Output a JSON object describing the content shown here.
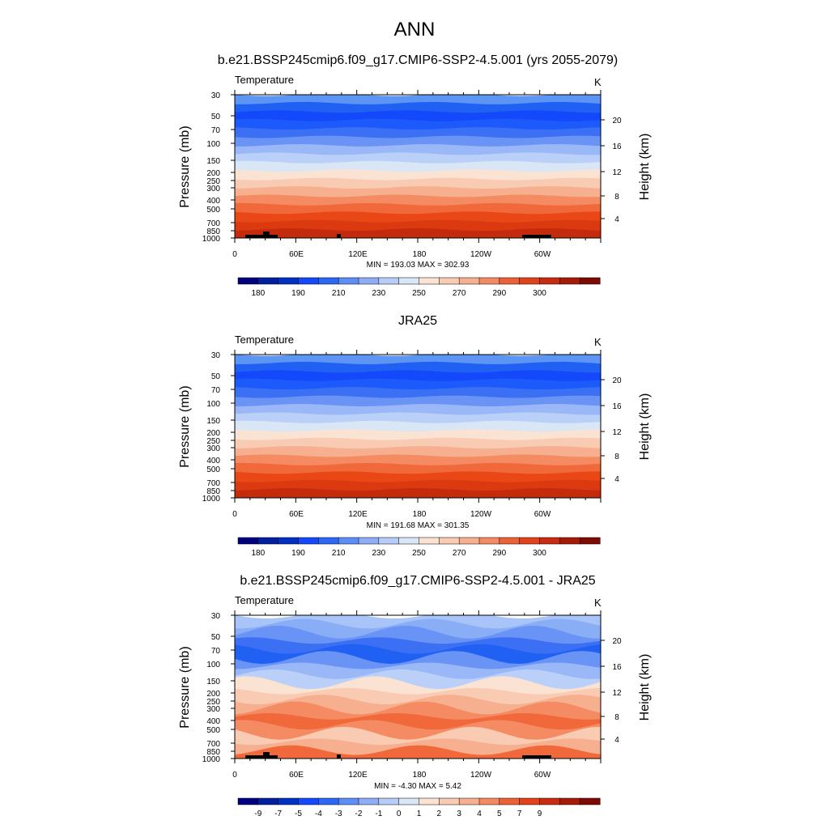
{
  "main_title": "ANN",
  "chart_data": [
    {
      "type": "heatmap",
      "title": "b.e21.BSSP245cmip6.f09_g17.CMIP6-SSP2-4.5.001 (yrs 2055-2079)",
      "variable": "Temperature",
      "units": "K",
      "ylabel": "Pressure (mb)",
      "ylabel_right": "Height (km)",
      "pressure_ticks": [
        "30",
        "50",
        "70",
        "100",
        "150",
        "200",
        "250",
        "300",
        "400",
        "500",
        "700",
        "850",
        "1000"
      ],
      "height_ticks": [
        "20",
        "16",
        "12",
        "8",
        "4"
      ],
      "lon_ticks": [
        "0",
        "60E",
        "120E",
        "180",
        "120W",
        "60W"
      ],
      "stats": "MIN = 193.03  MAX = 302.93",
      "colorbar_labels": [
        "180",
        "190",
        "210",
        "230",
        "250",
        "270",
        "290",
        "300"
      ],
      "band_colors": [
        "#5d95f4",
        "#2061f4",
        "#1449fb",
        "#1d5afc",
        "#3c70f4",
        "#6a93f6",
        "#9ab7f8",
        "#bad0f9",
        "#d9e6f6",
        "#fbe3d4",
        "#f9cbb2",
        "#f7b08f",
        "#f58b62",
        "#f1683b",
        "#e94816",
        "#db3a10",
        "#c42b0c"
      ],
      "has_topography": true,
      "contours": "zonal"
    },
    {
      "type": "heatmap",
      "title": "JRA25",
      "variable": "Temperature",
      "units": "K",
      "ylabel": "Pressure (mb)",
      "ylabel_right": "Height (km)",
      "pressure_ticks": [
        "30",
        "50",
        "70",
        "100",
        "150",
        "200",
        "250",
        "300",
        "400",
        "500",
        "700",
        "850",
        "1000"
      ],
      "height_ticks": [
        "20",
        "16",
        "12",
        "8",
        "4"
      ],
      "lon_ticks": [
        "0",
        "60E",
        "120E",
        "180",
        "120W",
        "60W"
      ],
      "stats": "MIN = 191.68  MAX = 301.35",
      "colorbar_labels": [
        "180",
        "190",
        "210",
        "230",
        "250",
        "270",
        "290",
        "300"
      ],
      "band_colors": [
        "#5d95f4",
        "#2061f4",
        "#1449fb",
        "#1d5afc",
        "#3c70f4",
        "#6a93f6",
        "#9ab7f8",
        "#bad0f9",
        "#d9e6f6",
        "#fbe3d4",
        "#f9cbb2",
        "#f7b08f",
        "#f58b62",
        "#f1683b",
        "#e94816",
        "#db3a10",
        "#c42b0c"
      ],
      "has_topography": false,
      "contours": "zonal"
    },
    {
      "type": "heatmap",
      "title": "b.e21.BSSP245cmip6.f09_g17.CMIP6-SSP2-4.5.001 - JRA25",
      "variable": "Temperature",
      "units": "K",
      "ylabel": "Pressure (mb)",
      "ylabel_right": "Height (km)",
      "pressure_ticks": [
        "30",
        "50",
        "70",
        "100",
        "150",
        "200",
        "250",
        "300",
        "400",
        "500",
        "700",
        "850",
        "1000"
      ],
      "height_ticks": [
        "20",
        "16",
        "12",
        "8",
        "4"
      ],
      "lon_ticks": [
        "0",
        "60E",
        "120E",
        "180",
        "120W",
        "60W"
      ],
      "stats": "MIN = -4.30  MAX =  5.42",
      "colorbar_labels": [
        "-9",
        "-7",
        "-5",
        "-4",
        "-3",
        "-2",
        "-1",
        "0",
        "1",
        "2",
        "3",
        "4",
        "5",
        "7",
        "9"
      ],
      "band_colors": [
        "#a9c4f8",
        "#8aaef6",
        "#6a93f6",
        "#3c70f4",
        "#2061f4",
        "#6a93f6",
        "#9ab7f8",
        "#bad0f9",
        "#fbe3d4",
        "#f9cbb2",
        "#f7b08f",
        "#f58b62",
        "#f1683b",
        "#f58b62",
        "#f9cbb2",
        "#f7b08f",
        "#f1683b"
      ],
      "has_topography": true,
      "contours": "difference"
    }
  ],
  "colorbar_colors": [
    "#00007f",
    "#0020a0",
    "#0031c0",
    "#1449fb",
    "#2c68f4",
    "#5d8df5",
    "#8eadf6",
    "#b7cdf8",
    "#d9e6f6",
    "#fbe3d4",
    "#f9cbb2",
    "#f7b08f",
    "#f38a63",
    "#ec6138",
    "#e2421a",
    "#c82b0f",
    "#a61a08",
    "#7e0a04"
  ]
}
